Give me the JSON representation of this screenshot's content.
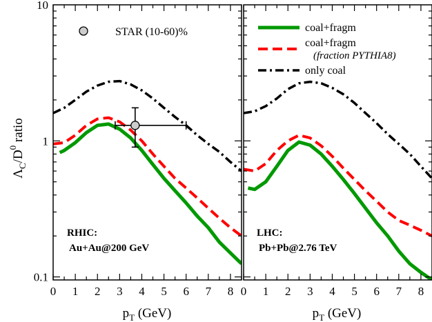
{
  "chart_data": {
    "type": "line",
    "ylabel_main": "Λ",
    "ylabel_sub1": "C",
    "ylabel_mid": "/D",
    "ylabel_sup": "0",
    "ylabel_tail": " ratio",
    "yscale": "log",
    "ylim": [
      0.095,
      10
    ],
    "yticks": [
      {
        "value": 0.1,
        "label": "0.1"
      },
      {
        "value": 1,
        "label": "1"
      },
      {
        "value": 10,
        "label": "10"
      }
    ],
    "colors": {
      "coal_fragm": "#009900",
      "coal_fragm_pythia": "#ff0000",
      "only_coal": "#000000",
      "star_marker": "#cccccc"
    },
    "legend": {
      "star": "STAR (10-60)%",
      "coal_fragm": "coal+fragm",
      "coal_fragm_pythia_line1": "coal+fragm",
      "coal_fragm_pythia_line2": "(fraction PYTHIA8)",
      "only_coal": "only coal"
    },
    "panels": [
      {
        "xlabel_main": "p",
        "xlabel_sub": "T",
        "xlabel_tail": " (GeV)",
        "xlim": [
          0,
          8.5
        ],
        "xticks": [
          "0",
          "1",
          "2",
          "3",
          "4",
          "5",
          "6",
          "7",
          "8"
        ],
        "label_line1": "RHIC:",
        "label_line2": "Au+Au@200 GeV",
        "series": [
          {
            "key": "only_coal",
            "style": "dashdot",
            "x": [
              0,
              0.5,
              1,
              1.5,
              2,
              2.5,
              3,
              3.5,
              4,
              4.5,
              5,
              5.5,
              6,
              6.5,
              7,
              7.5,
              8,
              8.5
            ],
            "y": [
              1.6,
              1.75,
              2.0,
              2.3,
              2.55,
              2.72,
              2.75,
              2.6,
              2.35,
              2.05,
              1.75,
              1.5,
              1.3,
              1.1,
              0.95,
              0.83,
              0.7,
              0.6
            ]
          },
          {
            "key": "coal_fragm_pythia",
            "style": "dashed",
            "x": [
              0,
              0.5,
              1,
              1.5,
              2,
              2.5,
              3,
              3.5,
              4,
              4.5,
              5,
              5.5,
              6,
              6.5,
              7,
              7.5,
              8,
              8.5
            ],
            "y": [
              0.95,
              0.97,
              1.1,
              1.3,
              1.45,
              1.48,
              1.38,
              1.2,
              1.0,
              0.8,
              0.65,
              0.53,
              0.45,
              0.38,
              0.32,
              0.27,
              0.23,
              0.2
            ]
          },
          {
            "key": "coal_fragm",
            "style": "solid",
            "x": [
              0.3,
              0.5,
              1,
              1.5,
              2,
              2.5,
              3,
              3.5,
              4,
              4.5,
              5,
              5.5,
              6,
              6.5,
              7,
              7.5,
              8,
              8.5
            ],
            "y": [
              0.82,
              0.85,
              0.97,
              1.15,
              1.3,
              1.33,
              1.22,
              1.05,
              0.85,
              0.67,
              0.53,
              0.43,
              0.35,
              0.28,
              0.23,
              0.18,
              0.15,
              0.125
            ]
          }
        ],
        "data_points": [
          {
            "label": "STAR (10-60)%",
            "x": 3.7,
            "y": 1.3,
            "x_err": [
              0.9,
              2.3
            ],
            "y_err": [
              0.4,
              0.45
            ]
          }
        ]
      },
      {
        "xlabel_main": "p",
        "xlabel_sub": "T",
        "xlabel_tail": " (GeV)",
        "xlim": [
          0,
          8.5
        ],
        "xticks": [
          "0",
          "1",
          "2",
          "3",
          "4",
          "5",
          "6",
          "7",
          "8"
        ],
        "label_line1": "LHC:",
        "label_line2": "Pb+Pb@2.76 TeV",
        "series": [
          {
            "key": "only_coal",
            "style": "dashdot",
            "x": [
              0,
              0.5,
              1,
              1.5,
              2,
              2.5,
              3,
              3.5,
              4,
              4.5,
              5,
              5.5,
              6,
              6.5,
              7,
              7.5,
              8,
              8.5
            ],
            "y": [
              1.6,
              1.65,
              1.8,
              2.05,
              2.4,
              2.65,
              2.72,
              2.65,
              2.45,
              2.2,
              1.9,
              1.6,
              1.35,
              1.12,
              0.95,
              0.8,
              0.65,
              0.53
            ]
          },
          {
            "key": "coal_fragm_pythia",
            "style": "dashed",
            "x": [
              0,
              0.5,
              1,
              1.5,
              2,
              2.5,
              3,
              3.5,
              4,
              4.5,
              5,
              5.5,
              6,
              6.5,
              7,
              7.5,
              8,
              8.5
            ],
            "y": [
              0.62,
              0.6,
              0.68,
              0.85,
              1.0,
              1.1,
              1.05,
              0.92,
              0.77,
              0.63,
              0.52,
              0.43,
              0.36,
              0.3,
              0.26,
              0.24,
              0.22,
              0.2
            ]
          },
          {
            "key": "coal_fragm",
            "style": "solid",
            "x": [
              0.2,
              0.5,
              1,
              1.5,
              2,
              2.5,
              3,
              3.5,
              4,
              4.5,
              5,
              5.5,
              6,
              6.5,
              7,
              7.5,
              8,
              8.5
            ],
            "y": [
              0.45,
              0.44,
              0.5,
              0.65,
              0.85,
              0.98,
              0.93,
              0.8,
              0.65,
              0.52,
              0.41,
              0.32,
              0.25,
              0.2,
              0.155,
              0.125,
              0.108,
              0.095
            ]
          }
        ],
        "data_points": []
      }
    ]
  }
}
